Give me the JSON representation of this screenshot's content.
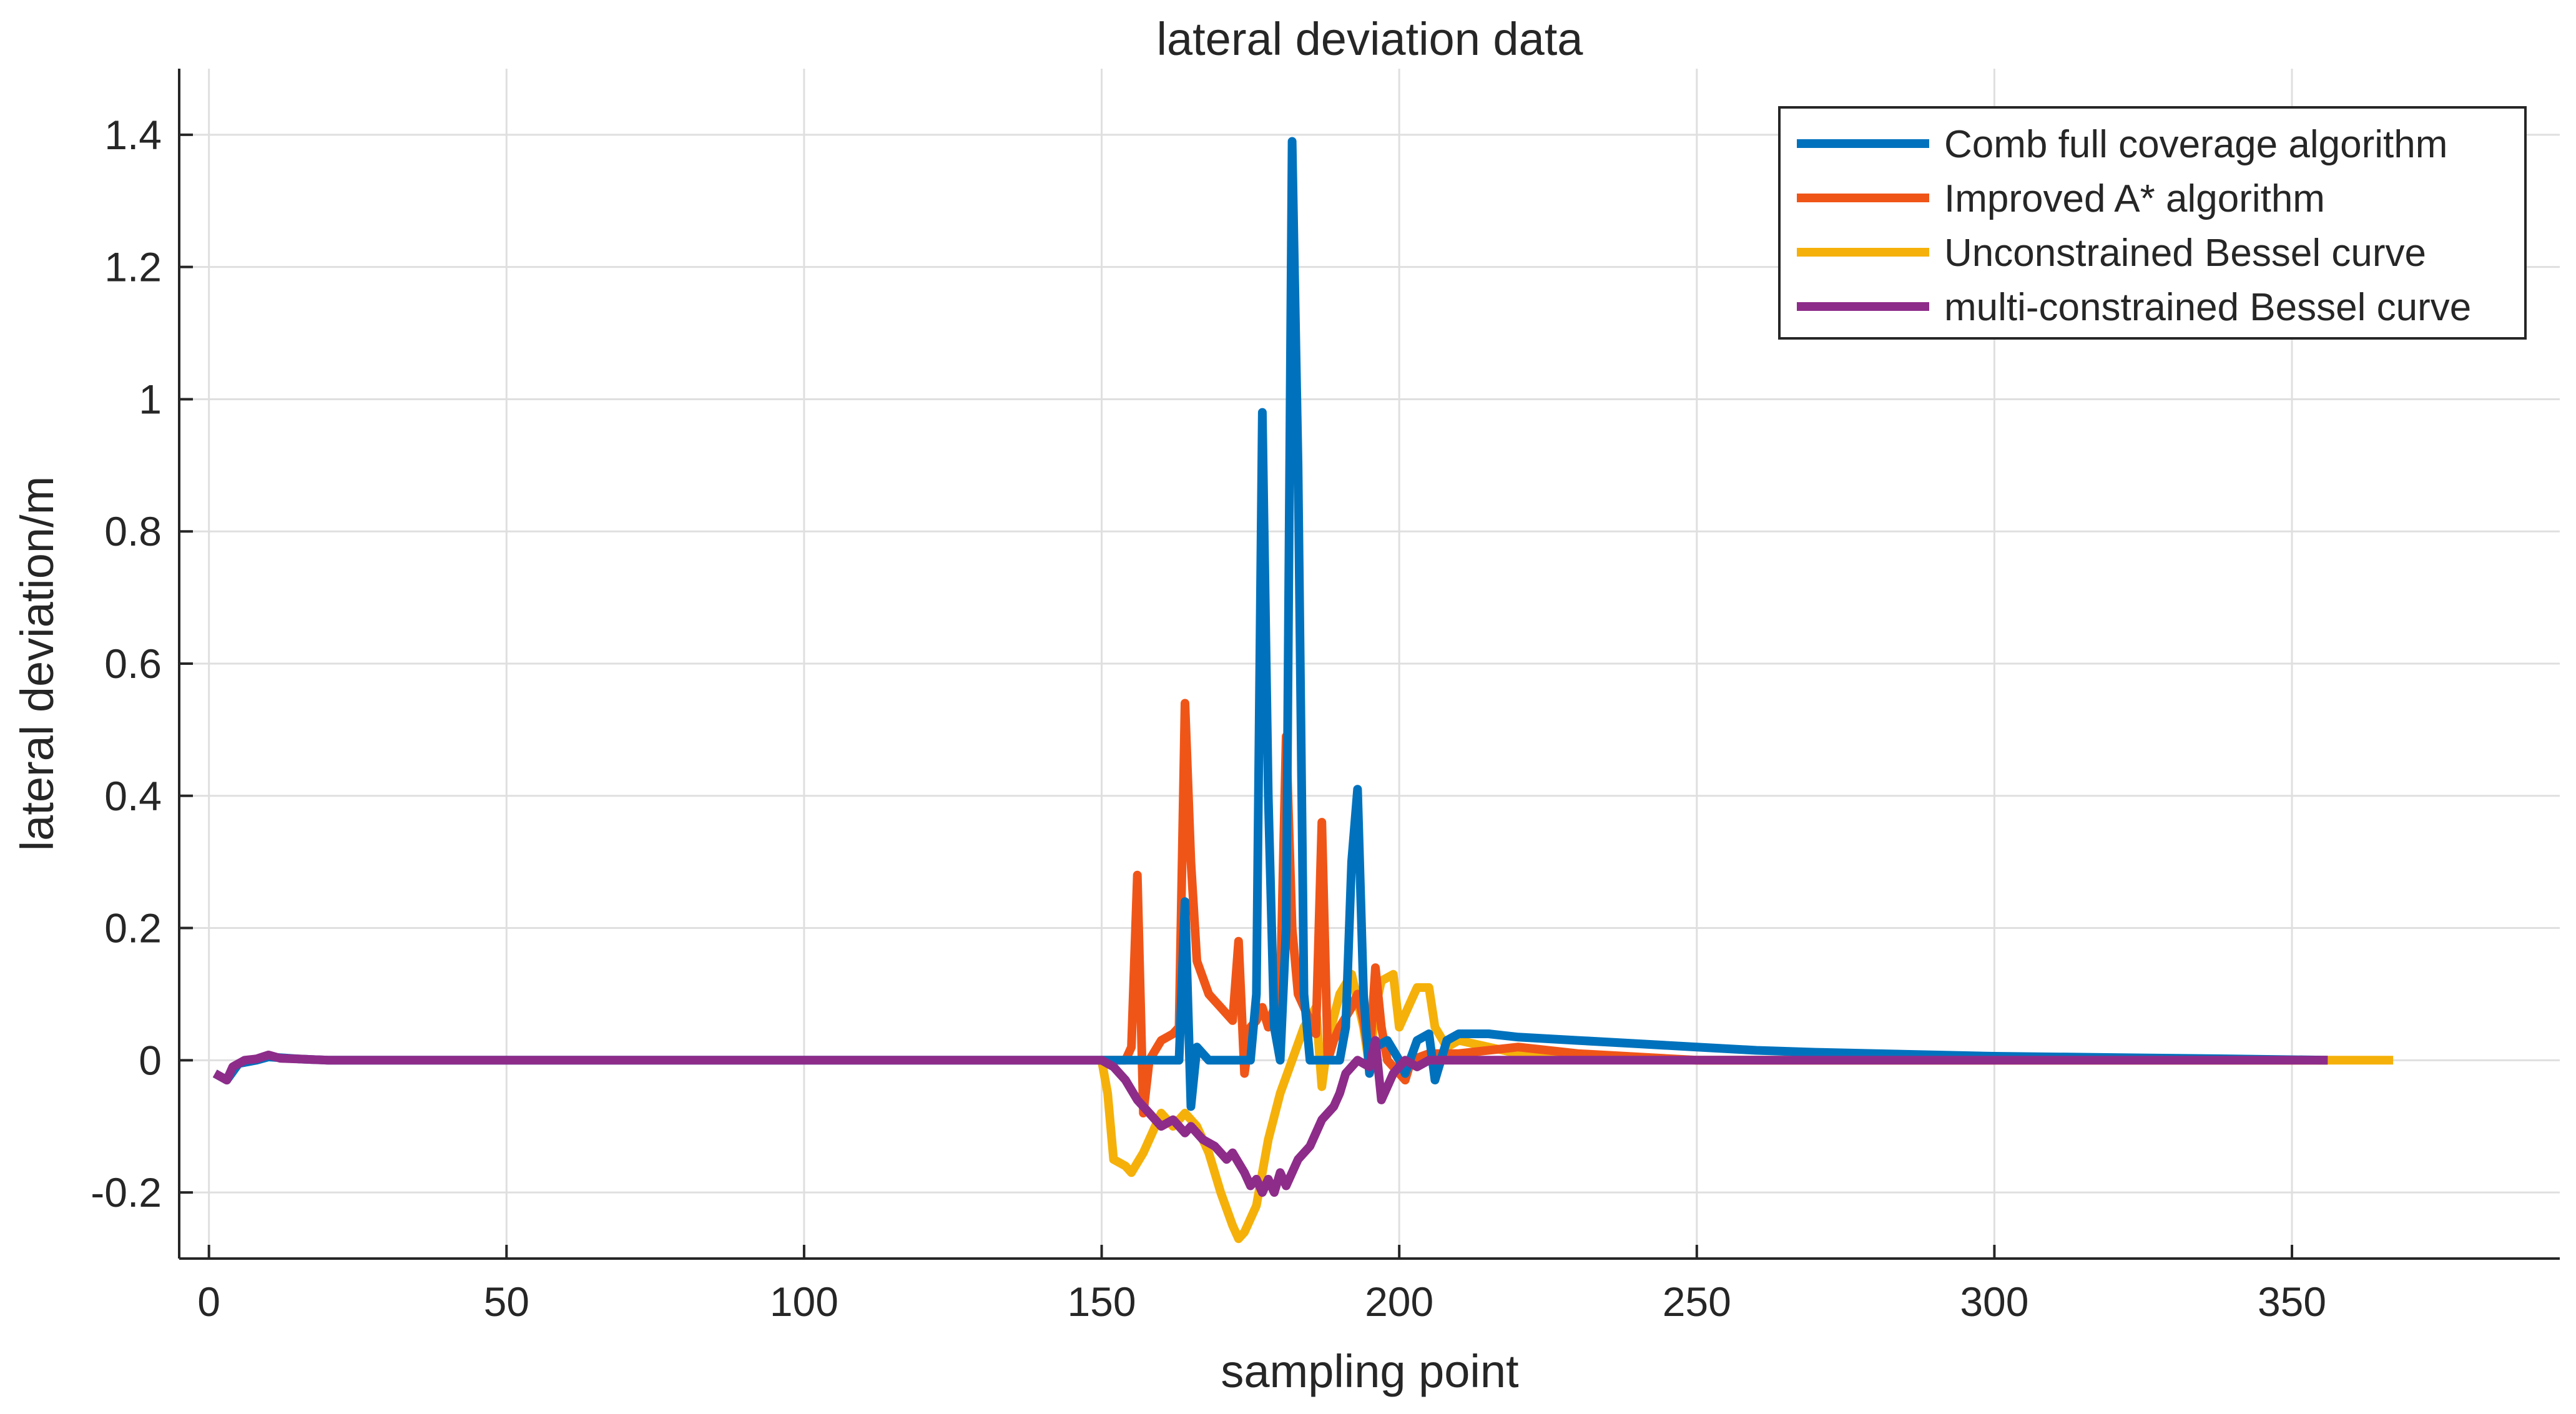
{
  "chart_data": {
    "type": "line",
    "title": "lateral deviation data",
    "xlabel": "sampling point",
    "ylabel": "lateral deviation/m",
    "xlim": [
      -5,
      395
    ],
    "ylim": [
      -0.3,
      1.5
    ],
    "xticks": [
      0,
      50,
      100,
      150,
      200,
      250,
      300,
      350
    ],
    "yticks": [
      -0.2,
      0,
      0.2,
      0.4,
      0.6,
      0.8,
      1,
      1.2,
      1.4
    ],
    "xtick_labels": [
      "0",
      "50",
      "100",
      "150",
      "200",
      "250",
      "300",
      "350"
    ],
    "ytick_labels": [
      "-0.2",
      "0",
      "0.2",
      "0.4",
      "0.6",
      "0.8",
      "1",
      "1.2",
      "1.4"
    ],
    "grid": true,
    "legend_position": "top-right",
    "series": [
      {
        "name": "Comb full coverage algorithm",
        "color": "#0072BD",
        "points": [
          [
            1,
            -0.02
          ],
          [
            3,
            -0.03
          ],
          [
            5,
            -0.005
          ],
          [
            8,
            0.0
          ],
          [
            10,
            0.005
          ],
          [
            15,
            0.002
          ],
          [
            20,
            0.0
          ],
          [
            150,
            0.0
          ],
          [
            160,
            0.0
          ],
          [
            163,
            0.0
          ],
          [
            164,
            0.24
          ],
          [
            165,
            -0.07
          ],
          [
            166,
            0.02
          ],
          [
            168,
            0.0
          ],
          [
            175,
            0.0
          ],
          [
            176,
            0.1
          ],
          [
            177,
            0.98
          ],
          [
            178,
            0.4
          ],
          [
            179,
            0.05
          ],
          [
            180,
            0.0
          ],
          [
            181,
            0.2
          ],
          [
            182,
            1.39
          ],
          [
            183,
            0.9
          ],
          [
            184,
            0.1
          ],
          [
            185,
            0.0
          ],
          [
            188,
            0.0
          ],
          [
            190,
            0.0
          ],
          [
            191,
            0.05
          ],
          [
            192,
            0.3
          ],
          [
            193,
            0.41
          ],
          [
            194,
            0.1
          ],
          [
            195,
            -0.02
          ],
          [
            196,
            0.02
          ],
          [
            198,
            0.03
          ],
          [
            200,
            0.0
          ],
          [
            201,
            -0.02
          ],
          [
            203,
            0.03
          ],
          [
            205,
            0.04
          ],
          [
            206,
            -0.03
          ],
          [
            207,
            0.0
          ],
          [
            208,
            0.03
          ],
          [
            210,
            0.04
          ],
          [
            215,
            0.04
          ],
          [
            220,
            0.035
          ],
          [
            230,
            0.03
          ],
          [
            240,
            0.025
          ],
          [
            250,
            0.02
          ],
          [
            260,
            0.015
          ],
          [
            270,
            0.012
          ],
          [
            280,
            0.01
          ],
          [
            290,
            0.008
          ],
          [
            300,
            0.006
          ],
          [
            320,
            0.004
          ],
          [
            340,
            0.002
          ],
          [
            356,
            0.0
          ]
        ]
      },
      {
        "name": "Improved A* algorithm",
        "color": "#F05518",
        "points": [
          [
            150,
            0.0
          ],
          [
            154,
            0.0
          ],
          [
            155,
            0.02
          ],
          [
            156,
            0.28
          ],
          [
            157,
            -0.08
          ],
          [
            158,
            0.0
          ],
          [
            160,
            0.03
          ],
          [
            162,
            0.04
          ],
          [
            163,
            0.05
          ],
          [
            164,
            0.54
          ],
          [
            165,
            0.3
          ],
          [
            166,
            0.15
          ],
          [
            168,
            0.1
          ],
          [
            170,
            0.08
          ],
          [
            172,
            0.06
          ],
          [
            173,
            0.18
          ],
          [
            174,
            -0.02
          ],
          [
            175,
            0.05
          ],
          [
            176,
            0.06
          ],
          [
            177,
            0.08
          ],
          [
            178,
            0.05
          ],
          [
            179,
            0.08
          ],
          [
            180,
            0.1
          ],
          [
            181,
            0.49
          ],
          [
            182,
            0.2
          ],
          [
            183,
            0.1
          ],
          [
            185,
            0.06
          ],
          [
            186,
            0.04
          ],
          [
            187,
            0.36
          ],
          [
            188,
            0.0
          ],
          [
            189,
            0.03
          ],
          [
            190,
            0.05
          ],
          [
            192,
            0.08
          ],
          [
            193,
            0.1
          ],
          [
            194,
            0.06
          ],
          [
            195,
            0.0
          ],
          [
            196,
            0.14
          ],
          [
            197,
            0.05
          ],
          [
            198,
            0.0
          ],
          [
            200,
            -0.02
          ],
          [
            201,
            -0.03
          ],
          [
            202,
            0.0
          ],
          [
            205,
            0.01
          ],
          [
            210,
            0.01
          ],
          [
            220,
            0.02
          ],
          [
            230,
            0.01
          ],
          [
            250,
            0.0
          ],
          [
            356,
            0.0
          ]
        ]
      },
      {
        "name": "Unconstrained Bessel curve",
        "color": "#F5B10A",
        "points": [
          [
            150,
            0.0
          ],
          [
            151,
            -0.05
          ],
          [
            152,
            -0.15
          ],
          [
            154,
            -0.16
          ],
          [
            155,
            -0.17
          ],
          [
            157,
            -0.14
          ],
          [
            159,
            -0.1
          ],
          [
            160,
            -0.08
          ],
          [
            162,
            -0.1
          ],
          [
            164,
            -0.08
          ],
          [
            166,
            -0.1
          ],
          [
            168,
            -0.14
          ],
          [
            170,
            -0.2
          ],
          [
            172,
            -0.25
          ],
          [
            173,
            -0.27
          ],
          [
            174,
            -0.26
          ],
          [
            176,
            -0.22
          ],
          [
            178,
            -0.12
          ],
          [
            180,
            -0.05
          ],
          [
            182,
            0.0
          ],
          [
            184,
            0.05
          ],
          [
            186,
            0.08
          ],
          [
            187,
            -0.04
          ],
          [
            188,
            0.03
          ],
          [
            190,
            0.1
          ],
          [
            192,
            0.13
          ],
          [
            194,
            0.05
          ],
          [
            195,
            -0.01
          ],
          [
            196,
            0.08
          ],
          [
            197,
            0.12
          ],
          [
            199,
            0.13
          ],
          [
            200,
            0.05
          ],
          [
            202,
            0.09
          ],
          [
            203,
            0.11
          ],
          [
            205,
            0.11
          ],
          [
            206,
            0.05
          ],
          [
            208,
            0.02
          ],
          [
            210,
            0.03
          ],
          [
            215,
            0.02
          ],
          [
            220,
            0.01
          ],
          [
            230,
            0.005
          ],
          [
            250,
            0.0
          ],
          [
            367,
            0.0
          ]
        ]
      },
      {
        "name": "multi-constrained Bessel curve",
        "color": "#8E2C8A",
        "points": [
          [
            1,
            -0.02
          ],
          [
            3,
            -0.03
          ],
          [
            4,
            -0.01
          ],
          [
            6,
            0.0
          ],
          [
            8,
            0.002
          ],
          [
            10,
            0.008
          ],
          [
            12,
            0.003
          ],
          [
            15,
            0.002
          ],
          [
            20,
            0.0
          ],
          [
            150,
            0.0
          ],
          [
            152,
            -0.01
          ],
          [
            154,
            -0.03
          ],
          [
            156,
            -0.06
          ],
          [
            158,
            -0.08
          ],
          [
            160,
            -0.1
          ],
          [
            162,
            -0.09
          ],
          [
            164,
            -0.11
          ],
          [
            165,
            -0.1
          ],
          [
            167,
            -0.12
          ],
          [
            169,
            -0.13
          ],
          [
            170,
            -0.14
          ],
          [
            171,
            -0.15
          ],
          [
            172,
            -0.14
          ],
          [
            174,
            -0.17
          ],
          [
            175,
            -0.19
          ],
          [
            176,
            -0.18
          ],
          [
            177,
            -0.2
          ],
          [
            178,
            -0.18
          ],
          [
            179,
            -0.2
          ],
          [
            180,
            -0.17
          ],
          [
            181,
            -0.19
          ],
          [
            183,
            -0.15
          ],
          [
            185,
            -0.13
          ],
          [
            187,
            -0.09
          ],
          [
            189,
            -0.07
          ],
          [
            190,
            -0.05
          ],
          [
            191,
            -0.02
          ],
          [
            193,
            0.0
          ],
          [
            195,
            -0.01
          ],
          [
            196,
            0.03
          ],
          [
            197,
            -0.06
          ],
          [
            199,
            -0.02
          ],
          [
            201,
            0.0
          ],
          [
            203,
            -0.01
          ],
          [
            205,
            0.0
          ],
          [
            210,
            0.0
          ],
          [
            356,
            0.0
          ]
        ]
      }
    ]
  }
}
